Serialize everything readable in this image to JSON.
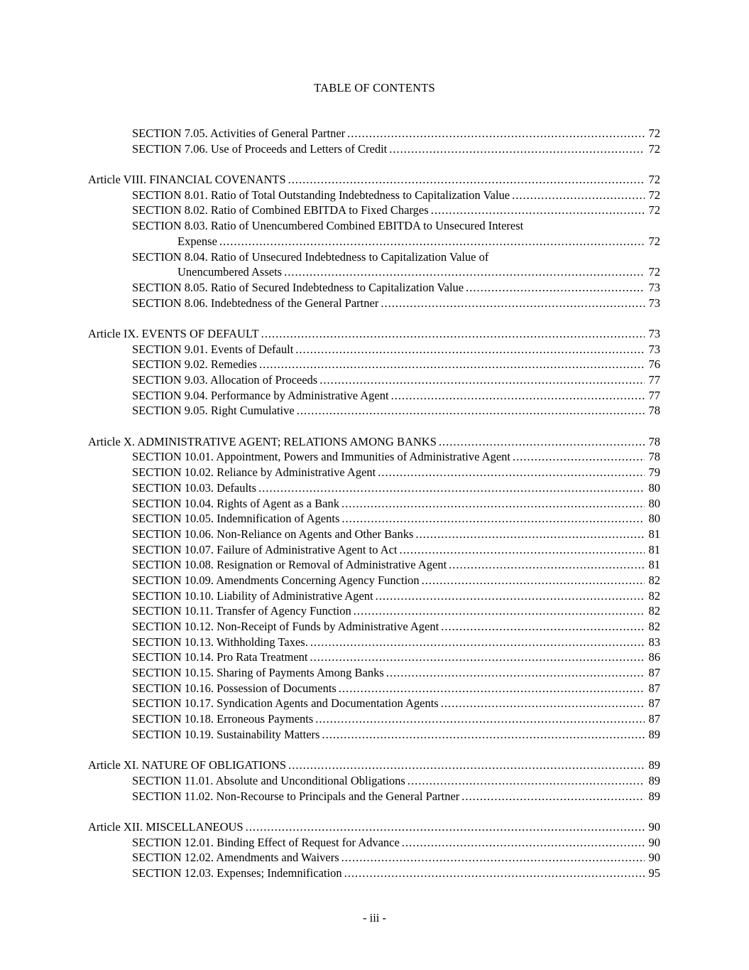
{
  "page": {
    "title": "TABLE OF CONTENTS",
    "footer": "- iii -"
  },
  "toc": {
    "entries": [
      {
        "type": "section",
        "text": "SECTION 7.05. Activities of General Partner",
        "page": "72"
      },
      {
        "type": "section",
        "text": "SECTION 7.06. Use of Proceeds and Letters of Credit",
        "page": "72"
      },
      {
        "type": "gap"
      },
      {
        "type": "article",
        "text": "Article VIII. FINANCIAL COVENANTS",
        "page": "72"
      },
      {
        "type": "section",
        "text": "SECTION 8.01. Ratio of Total Outstanding Indebtedness to Capitalization Value",
        "page": "72"
      },
      {
        "type": "section",
        "text": "SECTION 8.02. Ratio of Combined EBITDA to Fixed Charges",
        "page": "72"
      },
      {
        "type": "section",
        "text": "SECTION 8.03. Ratio of Unencumbered Combined EBITDA to Unsecured Interest",
        "cont": "Expense",
        "page": "72"
      },
      {
        "type": "section",
        "text": "SECTION 8.04. Ratio of Unsecured Indebtedness to Capitalization Value of",
        "cont": "Unencumbered Assets",
        "page": "72"
      },
      {
        "type": "section",
        "text": "SECTION 8.05. Ratio of Secured Indebtedness to Capitalization Value",
        "page": "73"
      },
      {
        "type": "section",
        "text": "SECTION 8.06. Indebtedness of the General Partner",
        "page": "73"
      },
      {
        "type": "gap"
      },
      {
        "type": "article",
        "text": "Article IX. EVENTS OF DEFAULT",
        "page": "73"
      },
      {
        "type": "section",
        "text": "SECTION 9.01. Events of Default",
        "page": "73"
      },
      {
        "type": "section",
        "text": "SECTION 9.02. Remedies",
        "page": "76"
      },
      {
        "type": "section",
        "text": "SECTION 9.03. Allocation of Proceeds",
        "page": "77"
      },
      {
        "type": "section",
        "text": "SECTION 9.04. Performance by Administrative Agent",
        "page": "77"
      },
      {
        "type": "section",
        "text": "SECTION 9.05. Right Cumulative",
        "page": "78"
      },
      {
        "type": "gap"
      },
      {
        "type": "article",
        "text": "Article X. ADMINISTRATIVE AGENT; RELATIONS AMONG BANKS",
        "page": "78"
      },
      {
        "type": "section",
        "text": "SECTION 10.01. Appointment, Powers and Immunities of Administrative Agent",
        "page": "78"
      },
      {
        "type": "section",
        "text": "SECTION 10.02. Reliance by Administrative Agent",
        "page": "79"
      },
      {
        "type": "section",
        "text": "SECTION 10.03. Defaults",
        "page": "80"
      },
      {
        "type": "section",
        "text": "SECTION 10.04. Rights of Agent as a Bank",
        "page": "80"
      },
      {
        "type": "section",
        "text": "SECTION 10.05. Indemnification of Agents",
        "page": "80"
      },
      {
        "type": "section",
        "text": "SECTION 10.06. Non-Reliance on Agents and Other Banks",
        "page": "81"
      },
      {
        "type": "section",
        "text": "SECTION 10.07. Failure of Administrative Agent to Act",
        "page": "81"
      },
      {
        "type": "section",
        "text": "SECTION 10.08. Resignation or Removal of Administrative Agent",
        "page": "81"
      },
      {
        "type": "section",
        "text": "SECTION 10.09. Amendments Concerning Agency Function",
        "page": "82"
      },
      {
        "type": "section",
        "text": "SECTION 10.10. Liability of Administrative Agent",
        "page": "82"
      },
      {
        "type": "section",
        "text": "SECTION 10.11. Transfer of Agency Function",
        "page": "82"
      },
      {
        "type": "section",
        "text": "SECTION 10.12. Non-Receipt of Funds by Administrative Agent",
        "page": "82"
      },
      {
        "type": "section",
        "text": "SECTION 10.13. Withholding Taxes.",
        "page": "83"
      },
      {
        "type": "section",
        "text": "SECTION 10.14. Pro Rata Treatment",
        "page": "86"
      },
      {
        "type": "section",
        "text": "SECTION 10.15. Sharing of Payments Among Banks",
        "page": "87"
      },
      {
        "type": "section",
        "text": "SECTION 10.16. Possession of Documents",
        "page": "87"
      },
      {
        "type": "section",
        "text": "SECTION 10.17. Syndication Agents and Documentation Agents",
        "page": "87"
      },
      {
        "type": "section",
        "text": "SECTION 10.18. Erroneous Payments",
        "page": "87"
      },
      {
        "type": "section",
        "text": "SECTION 10.19. Sustainability Matters",
        "page": "89"
      },
      {
        "type": "gap"
      },
      {
        "type": "article",
        "text": "Article XI. NATURE OF OBLIGATIONS",
        "page": "89"
      },
      {
        "type": "section",
        "text": "SECTION 11.01. Absolute and Unconditional Obligations",
        "page": "89"
      },
      {
        "type": "section",
        "text": "SECTION 11.02. Non-Recourse to Principals and the General Partner",
        "page": "89"
      },
      {
        "type": "gap"
      },
      {
        "type": "article",
        "text": "Article XII. MISCELLANEOUS",
        "page": "90"
      },
      {
        "type": "section",
        "text": "SECTION 12.01. Binding Effect of Request for Advance",
        "page": "90"
      },
      {
        "type": "section",
        "text": "SECTION 12.02. Amendments and Waivers",
        "page": "90"
      },
      {
        "type": "section",
        "text": "SECTION 12.03. Expenses; Indemnification",
        "page": "95"
      }
    ]
  }
}
